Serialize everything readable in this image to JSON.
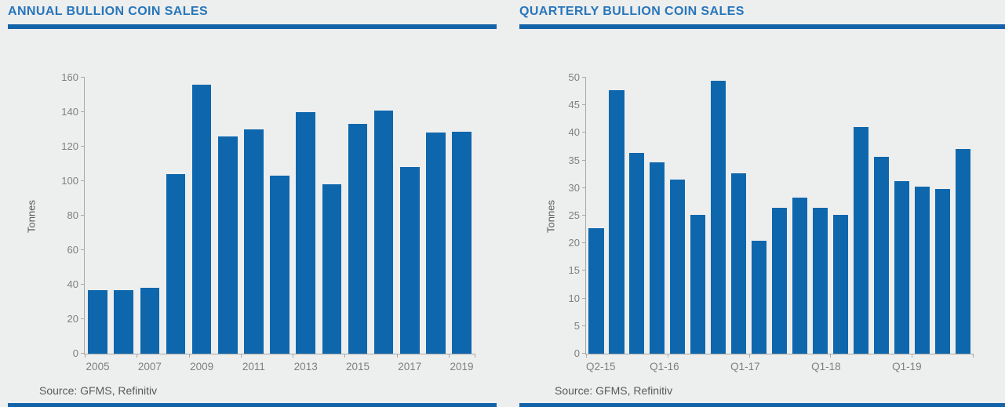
{
  "colors": {
    "page_bg": "#edeeee",
    "accent_rule": "#1463a8",
    "bar": "#0e67ad",
    "title_text": "#2776bb",
    "axis": "#a9a9a9",
    "tick_text": "#7f7f7f",
    "muted_text": "#595959"
  },
  "chart_data": [
    {
      "type": "bar",
      "title": "ANNUAL BULLION COIN SALES",
      "ylabel": "Tonnes",
      "source": "Source: GFMS, Refinitiv",
      "categories": [
        "2005",
        "2006",
        "2007",
        "2008",
        "2009",
        "2010",
        "2011",
        "2012",
        "2013",
        "2014",
        "2015",
        "2016",
        "2017",
        "2018",
        "2019"
      ],
      "values": [
        37,
        37,
        38,
        104,
        156,
        126,
        130,
        103,
        140,
        98,
        133,
        141,
        108,
        128,
        128.5
      ],
      "xticks_shown": [
        "2005",
        "2007",
        "2009",
        "2011",
        "2013",
        "2015",
        "2017",
        "2019"
      ],
      "xtick_mark_every": 2,
      "ylim": [
        0,
        160
      ],
      "ytick_step": 20,
      "grid": "off",
      "legend": "none"
    },
    {
      "type": "bar",
      "title": "QUARTERLY BULLION COIN SALES",
      "ylabel": "Tonnes",
      "source": "Source: GFMS, Refinitiv",
      "categories": [
        "Q2-15",
        "Q3-15",
        "Q4-15",
        "Q1-16",
        "Q2-16",
        "Q3-16",
        "Q4-16",
        "Q1-17",
        "Q2-17",
        "Q3-17",
        "Q4-17",
        "Q1-18",
        "Q2-18",
        "Q3-18",
        "Q4-18",
        "Q1-19",
        "Q2-19",
        "Q3-19",
        "Q4-19"
      ],
      "values": [
        22.8,
        47.8,
        36.4,
        34.6,
        31.5,
        25.2,
        49.5,
        32.7,
        20.5,
        26.4,
        28.3,
        26.4,
        25.1,
        41.0,
        35.7,
        31.2,
        30.2,
        29.9,
        37.1
      ],
      "xticks_shown": [
        "Q2-15",
        "Q1-16",
        "Q1-17",
        "Q1-18",
        "Q1-19"
      ],
      "xtick_mark_every": 4,
      "ylim": [
        0,
        50
      ],
      "ytick_step": 5,
      "grid": "off",
      "legend": "none"
    }
  ]
}
